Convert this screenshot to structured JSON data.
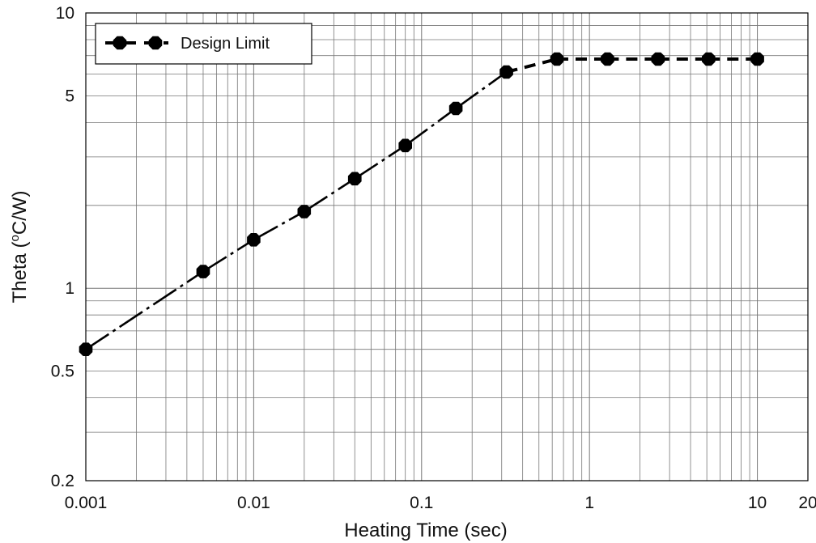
{
  "chart_data": {
    "type": "line",
    "x_scale": "log",
    "y_scale": "log",
    "xlim": [
      0.001,
      20
    ],
    "ylim": [
      0.2,
      10
    ],
    "x_ticks": [
      {
        "value": 0.001,
        "label": "0.001"
      },
      {
        "value": 0.01,
        "label": "0.01"
      },
      {
        "value": 0.1,
        "label": "0.1"
      },
      {
        "value": 1,
        "label": "1"
      },
      {
        "value": 10,
        "label": "10"
      },
      {
        "value": 20,
        "label": "20"
      }
    ],
    "y_ticks": [
      {
        "value": 0.2,
        "label": "0.2"
      },
      {
        "value": 0.5,
        "label": "0.5"
      },
      {
        "value": 1,
        "label": "1"
      },
      {
        "value": 5,
        "label": "5"
      },
      {
        "value": 10,
        "label": "10"
      }
    ],
    "xlabel": "Heating Time (sec)",
    "ylabel": "Theta (oC/W)",
    "ylabel_parts": [
      "Theta (",
      "o",
      "C/W)"
    ],
    "grid": true,
    "legend": {
      "position": "top-left",
      "entries": [
        "Design Limit"
      ]
    },
    "series": [
      {
        "name": "Design Limit",
        "color": "#000000",
        "marker": "filled-octagon",
        "line_style": "dash-dot",
        "x": [
          0.001,
          0.005,
          0.01,
          0.02,
          0.04,
          0.08,
          0.16,
          0.32,
          0.64,
          1.28,
          2.56,
          5.12,
          10
        ],
        "y": [
          0.6,
          1.15,
          1.5,
          1.9,
          2.5,
          3.3,
          4.5,
          6.1,
          6.8,
          6.8,
          6.8,
          6.8,
          6.8
        ]
      }
    ]
  }
}
